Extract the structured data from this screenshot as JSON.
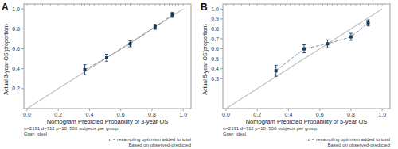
{
  "chart_data": [
    {
      "type": "line",
      "title": "A",
      "x_label": "Nomogram Predicted Probability of 3-year OS",
      "y_label": "Actual 3-year OS(proportion)",
      "xlim": [
        -0.02,
        1.05
      ],
      "ylim": [
        0.0,
        1.05
      ],
      "xticks": [
        {
          "value": 0.0,
          "label": "0.0"
        },
        0.2,
        0.4,
        0.6,
        0.8,
        {
          "value": 1.0,
          "label": "1.0"
        }
      ],
      "yticks": [
        0.2,
        0.4,
        0.6,
        0.8,
        {
          "value": 1.0,
          "label": "1.0"
        }
      ],
      "x2ticks": [
        0.0,
        0.05,
        0.1,
        0.15,
        0.2,
        0.25,
        0.3,
        0.35,
        0.37,
        0.4,
        0.43,
        0.46,
        0.49,
        0.51,
        0.54,
        0.57,
        0.6,
        0.63,
        0.66,
        0.69,
        0.72,
        0.75,
        0.78,
        0.82,
        0.85,
        0.88,
        0.91,
        0.93,
        0.95,
        0.97,
        1.0
      ],
      "grid": false,
      "annotations": [
        "n=2191 d=712 p=10, 500 subjects per group\nGray: ideal",
        "o = resampling optimism added to total\nBased on observed-predicted"
      ],
      "series": [
        {
          "type": "line",
          "color": "#c0c0c0",
          "line_style": "solid",
          "x": [
            0.0,
            1.0
          ],
          "values": [
            0.0,
            1.0
          ]
        },
        {
          "type": "line",
          "color": "#1a3a5c",
          "line_style": "dashed",
          "marker": "square",
          "x": [
            0.37,
            0.51,
            0.66,
            0.82,
            0.93
          ],
          "values": [
            0.39,
            0.51,
            0.65,
            0.82,
            0.94
          ],
          "errors": [
            0.05,
            0.035,
            0.03,
            0.025,
            0.025
          ]
        }
      ]
    },
    {
      "type": "line",
      "title": "B",
      "x_label": "Nomogram Predicted Probability of 5-year OS",
      "y_label": "Actual 5-year OS(proportion)",
      "xlim": [
        -0.02,
        1.05
      ],
      "ylim": [
        0.0,
        1.05
      ],
      "xticks": [
        {
          "value": 0.0,
          "label": "0.0"
        },
        0.2,
        0.4,
        0.6,
        0.8,
        {
          "value": 1.0,
          "label": "1.0"
        }
      ],
      "yticks": [
        0.3,
        0.4,
        0.5,
        0.6,
        0.7,
        0.8,
        0.9,
        {
          "value": 1.0,
          "label": "1.0"
        }
      ],
      "x2ticks": [
        0.0,
        0.05,
        0.1,
        0.15,
        0.2,
        0.25,
        0.3,
        0.32,
        0.35,
        0.38,
        0.41,
        0.44,
        0.47,
        0.5,
        0.53,
        0.56,
        0.59,
        0.62,
        0.65,
        0.68,
        0.71,
        0.74,
        0.77,
        0.8,
        0.83,
        0.86,
        0.89,
        0.91,
        0.94,
        0.97,
        1.0
      ],
      "grid": false,
      "annotations": [
        "n=2191 d=712 p=10, 500 subjects per group\nGray: ideal",
        "o = resampling optimism added to total\nBased on observed-predicted"
      ],
      "series": [
        {
          "type": "line",
          "color": "#c0c0c0",
          "line_style": "solid",
          "x": [
            0.0,
            1.0
          ],
          "values": [
            0.0,
            1.0
          ]
        },
        {
          "type": "line",
          "color": "#1a3a5c",
          "line_style": "dashed",
          "marker": "square",
          "x": [
            0.32,
            0.5,
            0.65,
            0.8,
            0.91
          ],
          "values": [
            0.38,
            0.6,
            0.65,
            0.72,
            0.86
          ],
          "errors": [
            0.055,
            0.04,
            0.04,
            0.035,
            0.03
          ]
        }
      ]
    }
  ]
}
